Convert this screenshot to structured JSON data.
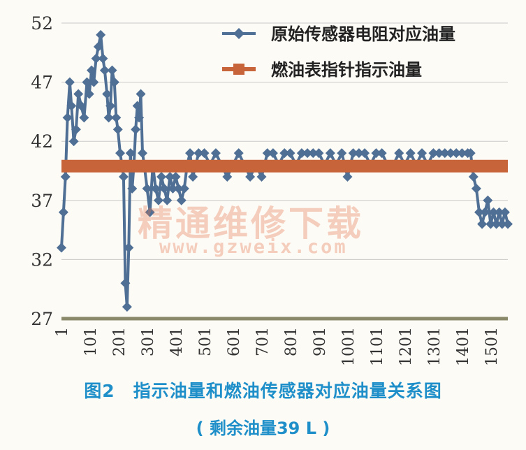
{
  "chart_data": {
    "type": "line",
    "ylim": [
      27,
      52
    ],
    "yticks": [
      27,
      32,
      37,
      42,
      47,
      52
    ],
    "xlim": [
      1,
      1560
    ],
    "xticks": [
      1,
      101,
      201,
      301,
      401,
      501,
      601,
      701,
      801,
      901,
      1001,
      1101,
      1201,
      1301,
      1401,
      1501
    ],
    "grid": true,
    "legend_position": "top-right",
    "series": [
      {
        "name": "原始传感器电阻对应油量",
        "color": "#4f6f95",
        "marker": "diamond",
        "x": [
          1,
          8,
          15,
          22,
          30,
          36,
          44,
          52,
          60,
          70,
          80,
          90,
          98,
          106,
          114,
          122,
          130,
          138,
          146,
          152,
          160,
          166,
          172,
          178,
          186,
          192,
          198,
          206,
          212,
          218,
          224,
          230,
          236,
          242,
          248,
          254,
          260,
          266,
          272,
          278,
          284,
          290,
          300,
          310,
          320,
          330,
          340,
          350,
          360,
          370,
          380,
          390,
          400,
          410,
          420,
          430,
          440,
          450,
          460,
          470,
          480,
          500,
          520,
          540,
          560,
          580,
          600,
          620,
          640,
          660,
          680,
          700,
          720,
          740,
          760,
          780,
          800,
          820,
          840,
          860,
          880,
          900,
          920,
          940,
          960,
          980,
          1000,
          1020,
          1040,
          1060,
          1080,
          1100,
          1120,
          1140,
          1160,
          1180,
          1200,
          1220,
          1240,
          1260,
          1280,
          1300,
          1320,
          1340,
          1360,
          1380,
          1400,
          1420,
          1430,
          1440,
          1450,
          1460,
          1470,
          1480,
          1490,
          1500,
          1510,
          1520,
          1530,
          1540,
          1550,
          1560
        ],
        "y": [
          33,
          36,
          39,
          44,
          47,
          45,
          42,
          43,
          46,
          45,
          44,
          47,
          46,
          48,
          47,
          49,
          50,
          51,
          49,
          48,
          46,
          44,
          45,
          48,
          47,
          44,
          43,
          41,
          40,
          39,
          30,
          28,
          33,
          41,
          38,
          40,
          43,
          45,
          44,
          46,
          41,
          40,
          38,
          36,
          40,
          38,
          37,
          39,
          38,
          37,
          39,
          38,
          39,
          38,
          37,
          38,
          40,
          41,
          39,
          40,
          41,
          41,
          40,
          41,
          40,
          39,
          40,
          41,
          40,
          39,
          40,
          39,
          41,
          41,
          40,
          41,
          41,
          40,
          41,
          41,
          41,
          41,
          40,
          41,
          40,
          41,
          39,
          41,
          41,
          41,
          40,
          41,
          41,
          40,
          40,
          41,
          40,
          41,
          40,
          41,
          40,
          41,
          41,
          41,
          41,
          41,
          41,
          41,
          41,
          39,
          38,
          36,
          35,
          36,
          37,
          35,
          36,
          35,
          36,
          35,
          36,
          35
        ]
      },
      {
        "name": "燃油表指针指示油量",
        "color": "#c8643a",
        "marker": "square",
        "x": [
          1,
          1560
        ],
        "y": [
          39.9,
          39.9
        ]
      }
    ]
  },
  "watermark": {
    "text_cn": "精通维修下载",
    "text_url": "www.gzweix.com"
  },
  "caption": {
    "figure_no": "图2",
    "title": "指示油量和燃油传感器对应油量关系图",
    "subtitle": "( 剩余油量39 L )"
  }
}
